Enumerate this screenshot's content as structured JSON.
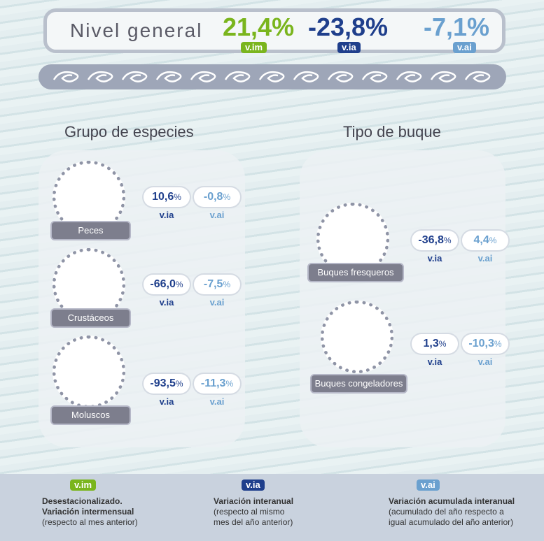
{
  "header": {
    "title": "Nivel general",
    "indicators": [
      {
        "value": "21,4%",
        "tag": "v.im"
      },
      {
        "value": "-23,8%",
        "tag": "v.ia"
      },
      {
        "value": "-7,1%",
        "tag": "v.ai"
      }
    ]
  },
  "groups": [
    {
      "title": "Grupo de especies",
      "items": [
        {
          "name": "Peces",
          "stats": [
            {
              "value": "10,6",
              "unit": "%",
              "tag": "v.ia"
            },
            {
              "value": "-0,8",
              "unit": "%",
              "tag": "v.ai"
            }
          ]
        },
        {
          "name": "Crustáceos",
          "stats": [
            {
              "value": "-66,0",
              "unit": "%",
              "tag": "v.ia"
            },
            {
              "value": "-7,5",
              "unit": "%",
              "tag": "v.ai"
            }
          ]
        },
        {
          "name": "Moluscos",
          "stats": [
            {
              "value": "-93,5",
              "unit": "%",
              "tag": "v.ia"
            },
            {
              "value": "-11,3",
              "unit": "%",
              "tag": "v.ai"
            }
          ]
        }
      ]
    },
    {
      "title": "Tipo de buque",
      "items": [
        {
          "name": "Buques fresqueros",
          "stats": [
            {
              "value": "-36,8",
              "unit": "%",
              "tag": "v.ia"
            },
            {
              "value": "4,4",
              "unit": "%",
              "tag": "v.ai"
            }
          ]
        },
        {
          "name": "Buques congeladores",
          "stats": [
            {
              "value": "1,3",
              "unit": "%",
              "tag": "v.ia"
            },
            {
              "value": "-10,3",
              "unit": "%",
              "tag": "v.ai"
            }
          ]
        }
      ]
    }
  ],
  "legend": [
    {
      "tag": "v.im",
      "lines": [
        "Desestacionalizado.",
        "Variación intermensual",
        "(respecto al mes anterior)"
      ]
    },
    {
      "tag": "v.ia",
      "lines": [
        "Variación interanual",
        "(respecto al mismo",
        "mes del año anterior)"
      ]
    },
    {
      "tag": "v.ai",
      "lines": [
        "Variación acumulada interanual",
        "(acumulado del año respecto a",
        "igual acumulado del año anterior)"
      ]
    }
  ]
}
